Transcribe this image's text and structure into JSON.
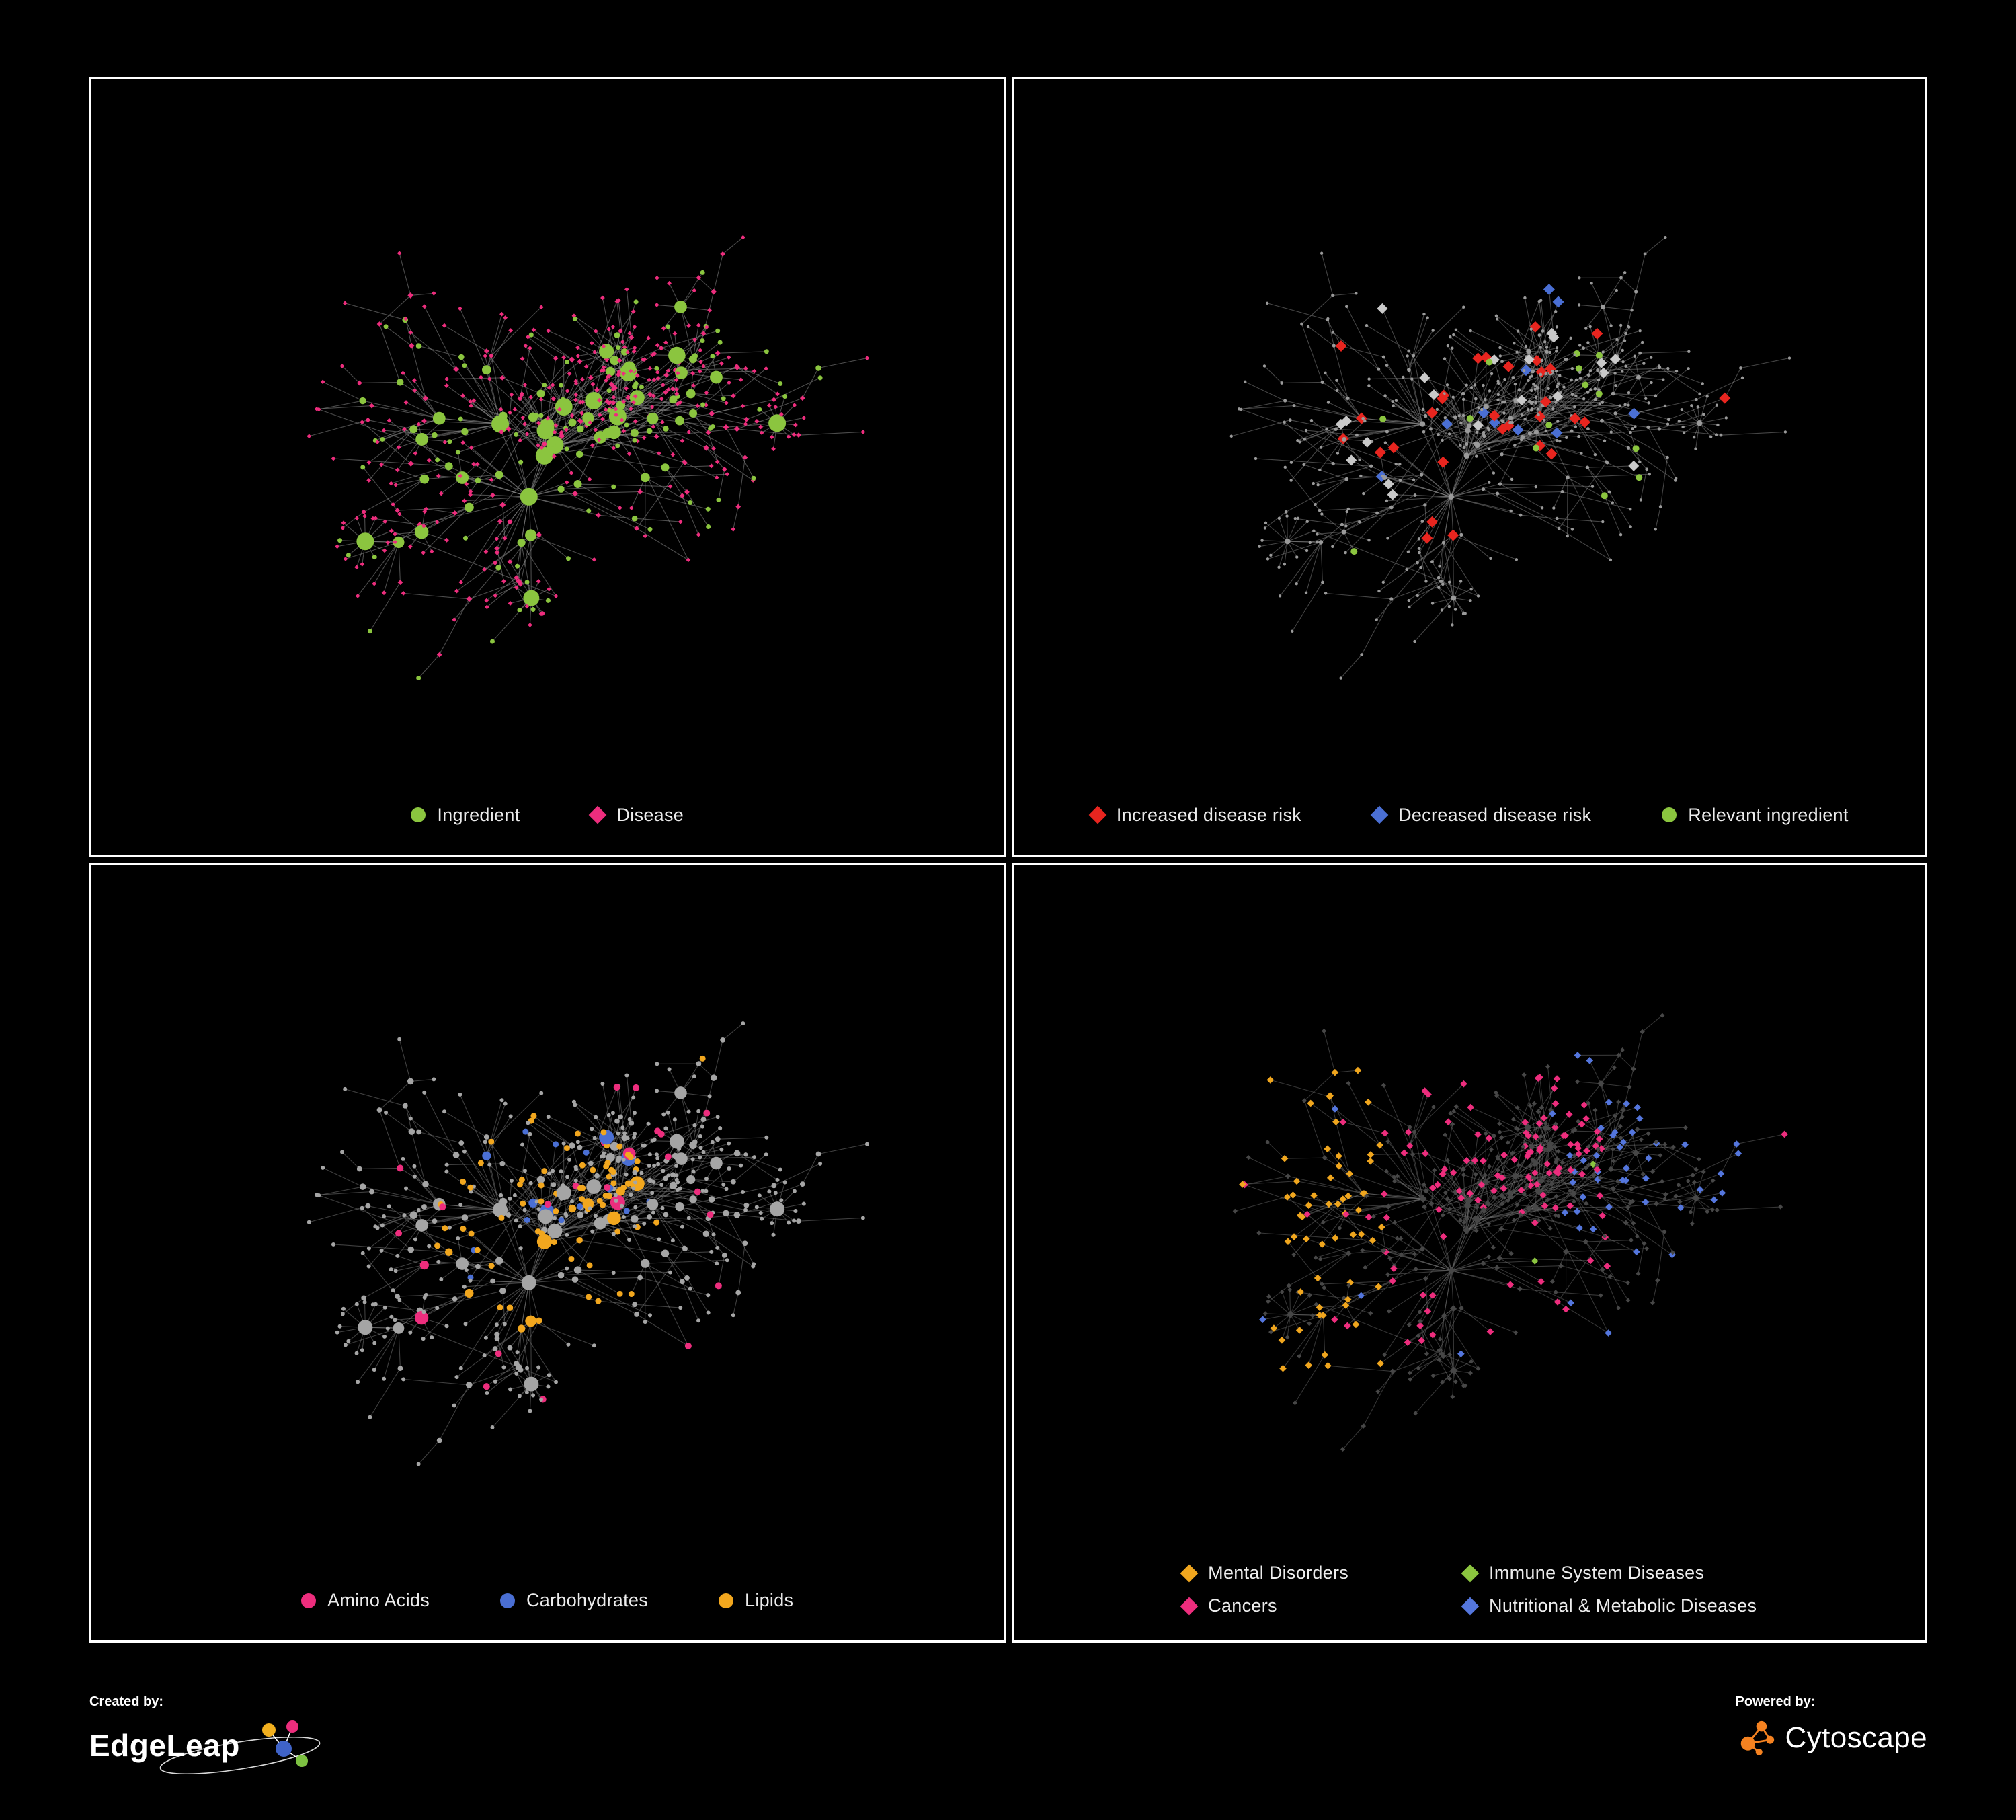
{
  "page": {
    "background": "#000000",
    "panel_border": "#ffffff"
  },
  "network": {
    "seed": 17,
    "node_count": 560,
    "roots": 3,
    "step": 92,
    "burst": 0.045
  },
  "panels": [
    {
      "id": "ingredient-disease",
      "edge_color": "#8a8a8a",
      "edge_opacity": 0.55,
      "legend_layout": "row",
      "colors": {
        "ingredient": "#8bc53f",
        "disease": "#ed2d7d"
      },
      "legend": [
        {
          "label": "Ingredient",
          "color": "#8bc53f",
          "shape": "circle"
        },
        {
          "label": "Disease",
          "color": "#ed2d7d",
          "shape": "diamond"
        }
      ]
    },
    {
      "id": "disease-risk",
      "edge_color": "#8a8a8a",
      "edge_opacity": 0.5,
      "legend_layout": "row",
      "colors": {
        "base": "#9a9a9a",
        "increased": "#e8251f",
        "decreased": "#4a6fd4",
        "relevant": "#8bc53f",
        "neutral": "#c9c9c9"
      },
      "legend": [
        {
          "label": "Increased disease risk",
          "color": "#e8251f",
          "shape": "diamond"
        },
        {
          "label": "Decreased disease risk",
          "color": "#4a6fd4",
          "shape": "diamond"
        },
        {
          "label": "Relevant ingredient",
          "color": "#8bc53f",
          "shape": "circle"
        }
      ]
    },
    {
      "id": "nutrients",
      "edge_color": "#7d7d7d",
      "edge_opacity": 0.5,
      "legend_layout": "row",
      "colors": {
        "base": "#a5a5a5",
        "amino_acids": "#ed2d7d",
        "carbohydrates": "#4a6fd4",
        "lipids": "#f2a71e"
      },
      "legend": [
        {
          "label": "Amino Acids",
          "color": "#ed2d7d",
          "shape": "circle"
        },
        {
          "label": "Carbohydrates",
          "color": "#4a6fd4",
          "shape": "circle"
        },
        {
          "label": "Lipids",
          "color": "#f2a71e",
          "shape": "circle"
        }
      ]
    },
    {
      "id": "disease-categories",
      "edge_color": "#777777",
      "edge_opacity": 0.45,
      "legend_layout": "grid",
      "colors": {
        "base": "#474747",
        "mental": "#f0a61e",
        "immune": "#8bc53f",
        "cancers": "#ed2d7d",
        "nutritional": "#5476dd"
      },
      "legend": [
        {
          "label": "Mental Disorders",
          "color": "#f0a61e",
          "shape": "diamond"
        },
        {
          "label": "Immune System Diseases",
          "color": "#8bc53f",
          "shape": "diamond"
        },
        {
          "label": "Cancers",
          "color": "#ed2d7d",
          "shape": "diamond"
        },
        {
          "label": "Nutritional & Metabolic Diseases",
          "color": "#5476dd",
          "shape": "diamond"
        }
      ]
    }
  ],
  "footer": {
    "created_by_label": "Created by:",
    "created_by_name": "EdgeLeap",
    "powered_by_label": "Powered by:",
    "powered_by_name": "Cytoscape",
    "edgeleap_colors": {
      "yellow": "#f2b01e",
      "pink": "#ec2d7c",
      "blue": "#3f63c8",
      "green": "#7dc142"
    },
    "cytoscape_color": "#f58220"
  }
}
